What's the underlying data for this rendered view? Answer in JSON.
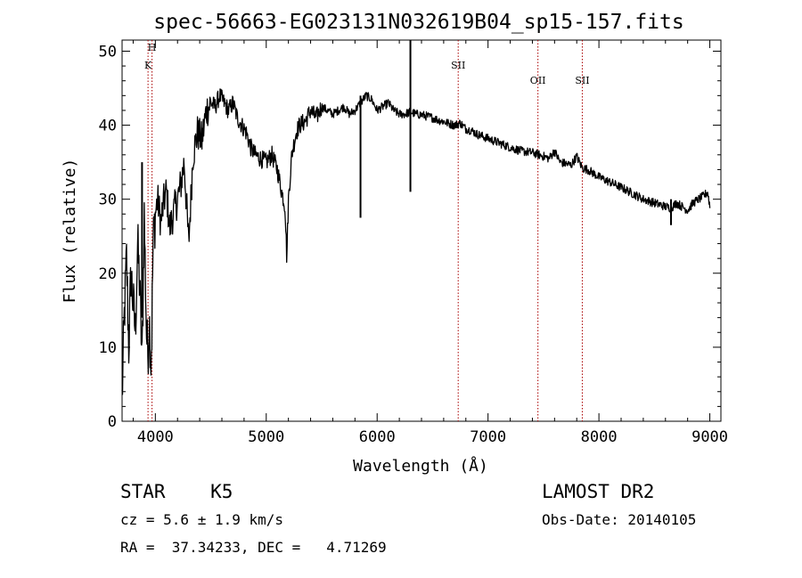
{
  "chart_data": {
    "type": "line",
    "title": "spec-56663-EG023131N032619B04_sp15-157.fits",
    "xlabel": "Wavelength (Å)",
    "ylabel": "Flux (relative)",
    "xlim": [
      3700,
      9100
    ],
    "ylim": [
      0,
      51.5
    ],
    "xticks": [
      4000,
      5000,
      6000,
      7000,
      8000,
      9000
    ],
    "yticks": [
      0,
      10,
      20,
      30,
      40,
      50
    ],
    "grid": false,
    "series": [
      {
        "x": [
          3700,
          3720,
          3740,
          3760,
          3780,
          3800,
          3820,
          3840,
          3860,
          3880,
          3900,
          3920,
          3933,
          3945,
          3960,
          3968,
          3980,
          4000,
          4020,
          4050,
          4080,
          4100,
          4130,
          4160,
          4200,
          4230,
          4260,
          4300,
          4340,
          4380,
          4420,
          4460,
          4500,
          4540,
          4580,
          4620,
          4660,
          4700,
          4740,
          4780,
          4820,
          4860,
          4900,
          4950,
          5000,
          5050,
          5100,
          5140,
          5170,
          5185,
          5200,
          5230,
          5270,
          5300,
          5350,
          5400,
          5450,
          5500,
          5550,
          5600,
          5650,
          5700,
          5750,
          5800,
          5850,
          5900,
          5950,
          6000,
          6050,
          6100,
          6150,
          6200,
          6250,
          6300,
          6350,
          6400,
          6450,
          6500,
          6550,
          6600,
          6650,
          6700,
          6750,
          6800,
          6850,
          6900,
          6950,
          7000,
          7100,
          7200,
          7300,
          7400,
          7500,
          7550,
          7600,
          7650,
          7700,
          7750,
          7800,
          7850,
          7900,
          8000,
          8100,
          8200,
          8300,
          8400,
          8500,
          8600,
          8650,
          8700,
          8750,
          8800,
          8850,
          8900,
          8950,
          8980,
          9000
        ],
        "values": [
          3,
          14,
          22,
          10,
          20,
          16,
          12,
          24,
          18,
          8,
          28,
          12,
          9,
          14,
          8,
          12,
          24,
          28,
          30,
          27,
          30,
          31,
          26,
          28,
          30,
          32,
          35,
          24,
          36,
          39,
          38,
          42,
          43,
          42.5,
          44,
          43,
          42,
          43,
          41,
          40,
          39,
          37,
          36,
          35.5,
          35,
          36,
          34,
          31,
          29,
          22,
          30,
          36,
          39,
          40,
          40.5,
          42,
          41,
          42.5,
          42,
          41.5,
          42,
          42.5,
          41.5,
          42,
          43,
          44,
          43.5,
          42,
          42.5,
          43,
          42,
          41.5,
          41.5,
          41.8,
          41.5,
          41.4,
          41.2,
          41,
          40.7,
          40.5,
          40.2,
          40,
          40.3,
          39.5,
          39.3,
          38.8,
          38.5,
          38.2,
          37.6,
          37,
          36.5,
          36.3,
          35.8,
          35.5,
          36.5,
          35,
          34.8,
          34.6,
          35.8,
          34.2,
          34,
          33,
          32.3,
          31.6,
          30.8,
          30,
          29.5,
          29,
          28.8,
          29.5,
          29,
          28.5,
          29.5,
          30,
          30.5,
          31,
          29
        ]
      }
    ],
    "annotations": [
      {
        "label": "H",
        "x": 3970
      },
      {
        "label": "K",
        "x": 3934
      },
      {
        "label": "SII",
        "x": 6731
      },
      {
        "label": "OII",
        "x": 7450
      },
      {
        "label": "SII",
        "x": 7850
      }
    ]
  },
  "info": {
    "classification": "STAR    K5",
    "redshift": "cz = 5.6 ± 1.9 km/s",
    "coordinates": "RA =  37.34233, DEC =   4.71269",
    "survey": "LAMOST DR2",
    "obs_date": "Obs-Date: 20140105"
  }
}
